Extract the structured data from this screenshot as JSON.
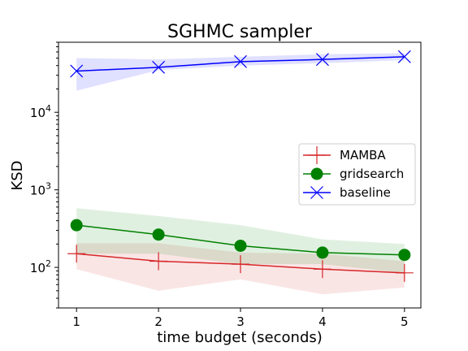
{
  "chart_data": {
    "type": "line",
    "title": "SGHMC sampler",
    "xlabel": "time budget (seconds)",
    "ylabel": "KSD",
    "x": [
      1,
      2,
      3,
      4,
      5
    ],
    "xlim": [
      0.78,
      5.2
    ],
    "ylim": [
      30,
      80000
    ],
    "yscale": "log",
    "xticks": [
      "1",
      "2",
      "3",
      "4",
      "5"
    ],
    "yticks": [
      {
        "value": 100,
        "base": "10",
        "exp": "2"
      },
      {
        "value": 1000,
        "base": "10",
        "exp": "3"
      },
      {
        "value": 10000,
        "base": "10",
        "exp": "4"
      }
    ],
    "grid": false,
    "legend_position": "center-right",
    "series": [
      {
        "name": "MAMBA",
        "color": "#d62728",
        "marker": "plus",
        "values": [
          150,
          120,
          110,
          95,
          85
        ],
        "band_lower": [
          95,
          50,
          70,
          45,
          55
        ],
        "band_upper": [
          205,
          205,
          155,
          150,
          120
        ]
      },
      {
        "name": "gridsearch",
        "color": "#008000",
        "marker": "circle",
        "values": [
          350,
          265,
          190,
          155,
          145
        ],
        "band_lower": [
          150,
          150,
          110,
          110,
          85
        ],
        "band_upper": [
          580,
          460,
          350,
          230,
          200
        ]
      },
      {
        "name": "baseline",
        "color": "#0000ff",
        "marker": "x",
        "values": [
          34000,
          38000,
          45000,
          48000,
          52000
        ],
        "band_lower": [
          19000,
          35000,
          40000,
          43000,
          47000
        ],
        "band_upper": [
          50000,
          48000,
          52000,
          56000,
          58000
        ]
      }
    ]
  }
}
